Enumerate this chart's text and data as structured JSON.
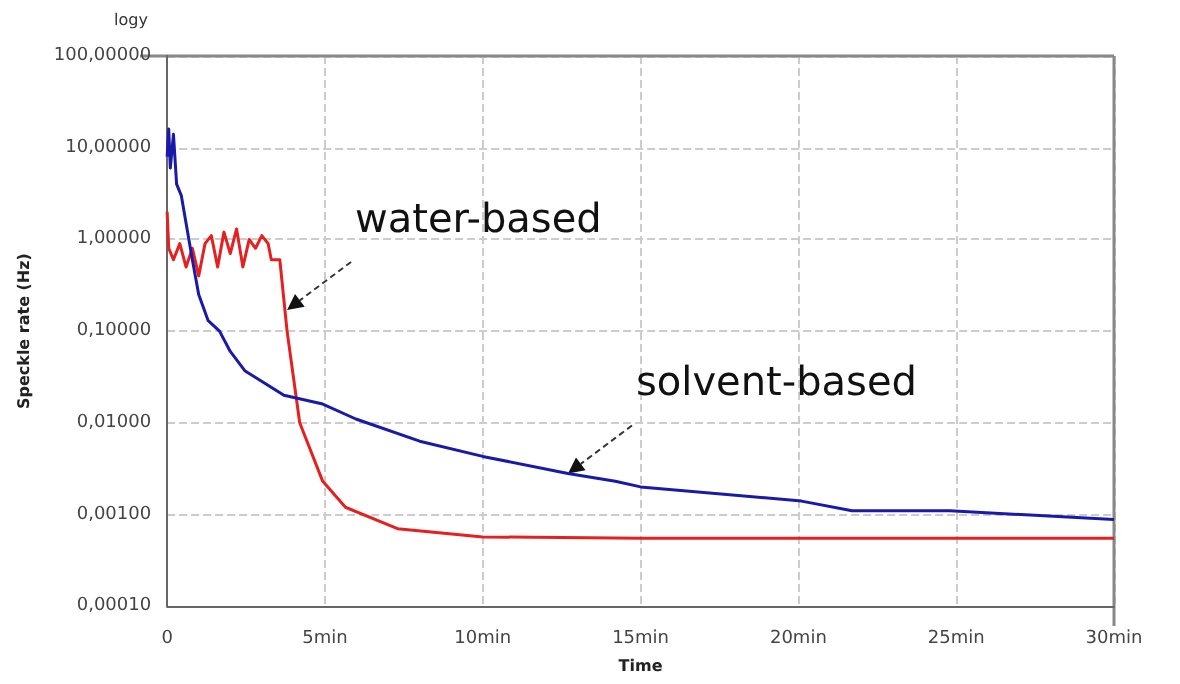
{
  "chart_data": {
    "type": "line",
    "xlabel": "Time",
    "ylabel": "Speckle rate (Hz)",
    "annotations": [
      "logy",
      {
        "text": "water-based",
        "x": 3.8,
        "y": 0.17
      },
      {
        "text": "solvent-based",
        "x": 12.7,
        "y": 0.0028
      }
    ],
    "log": "y",
    "grid": true,
    "marker": "none",
    "line_style": "solid",
    "xlim": [
      0,
      30
    ],
    "xticks": [
      0,
      {
        "value": 5,
        "label": "5min"
      },
      {
        "value": 10,
        "label": "10min"
      },
      {
        "value": 15,
        "label": "15min"
      },
      {
        "value": 20,
        "label": "20min"
      },
      {
        "value": 25,
        "label": "25min"
      },
      {
        "value": 30,
        "label": "30min"
      }
    ],
    "ylim": [
      0.0001,
      100
    ],
    "yticks": [
      {
        "value": 0.0001,
        "label": "0,00010"
      },
      {
        "value": 0.001,
        "label": "0,00100"
      },
      {
        "value": 0.01,
        "label": "0,01000"
      },
      {
        "value": 0.1,
        "label": "0,10000"
      },
      {
        "value": 1,
        "label": "1,00000"
      },
      {
        "value": 10,
        "label": "10,00000"
      },
      {
        "value": 100,
        "label": "100,00000"
      }
    ],
    "series": [
      {
        "color": "#e52020",
        "x": [
          0,
          0.05,
          0.2,
          0.4,
          0.6,
          0.8,
          1.0,
          1.2,
          1.4,
          1.6,
          1.8,
          2.0,
          2.2,
          2.4,
          2.6,
          2.8,
          3.0,
          3.2,
          3.3,
          3.57,
          3.8,
          4.2,
          4.93,
          5.65,
          7.3,
          10,
          15,
          20,
          25,
          30
        ],
        "values": [
          2,
          0.8,
          0.6,
          0.9,
          0.5,
          0.8,
          0.4,
          0.9,
          1.1,
          0.5,
          1.2,
          0.7,
          1.3,
          0.5,
          1.0,
          0.8,
          1.1,
          0.9,
          0.6,
          0.6,
          0.1,
          0.01,
          0.0023,
          0.0012,
          0.0007,
          0.00057,
          0.00055,
          0.00055,
          0.00055,
          0.00055
        ]
      },
      {
        "color": "#1a1aa8",
        "x": [
          0,
          0.05,
          0.1,
          0.2,
          0.3,
          0.45,
          0.6,
          0.8,
          1.0,
          1.3,
          1.66,
          2.0,
          2.46,
          3.7,
          4.93,
          5.98,
          8,
          10,
          12.7,
          14.2,
          15,
          20.1,
          21.7,
          24.8,
          30
        ],
        "values": [
          8,
          16,
          6,
          14,
          4,
          3,
          1.5,
          0.6,
          0.25,
          0.13,
          0.1,
          0.06,
          0.037,
          0.02,
          0.016,
          0.011,
          0.0063,
          0.0043,
          0.0028,
          0.0023,
          0.002,
          0.0014,
          0.0011,
          0.0011,
          0.00088
        ]
      }
    ]
  }
}
